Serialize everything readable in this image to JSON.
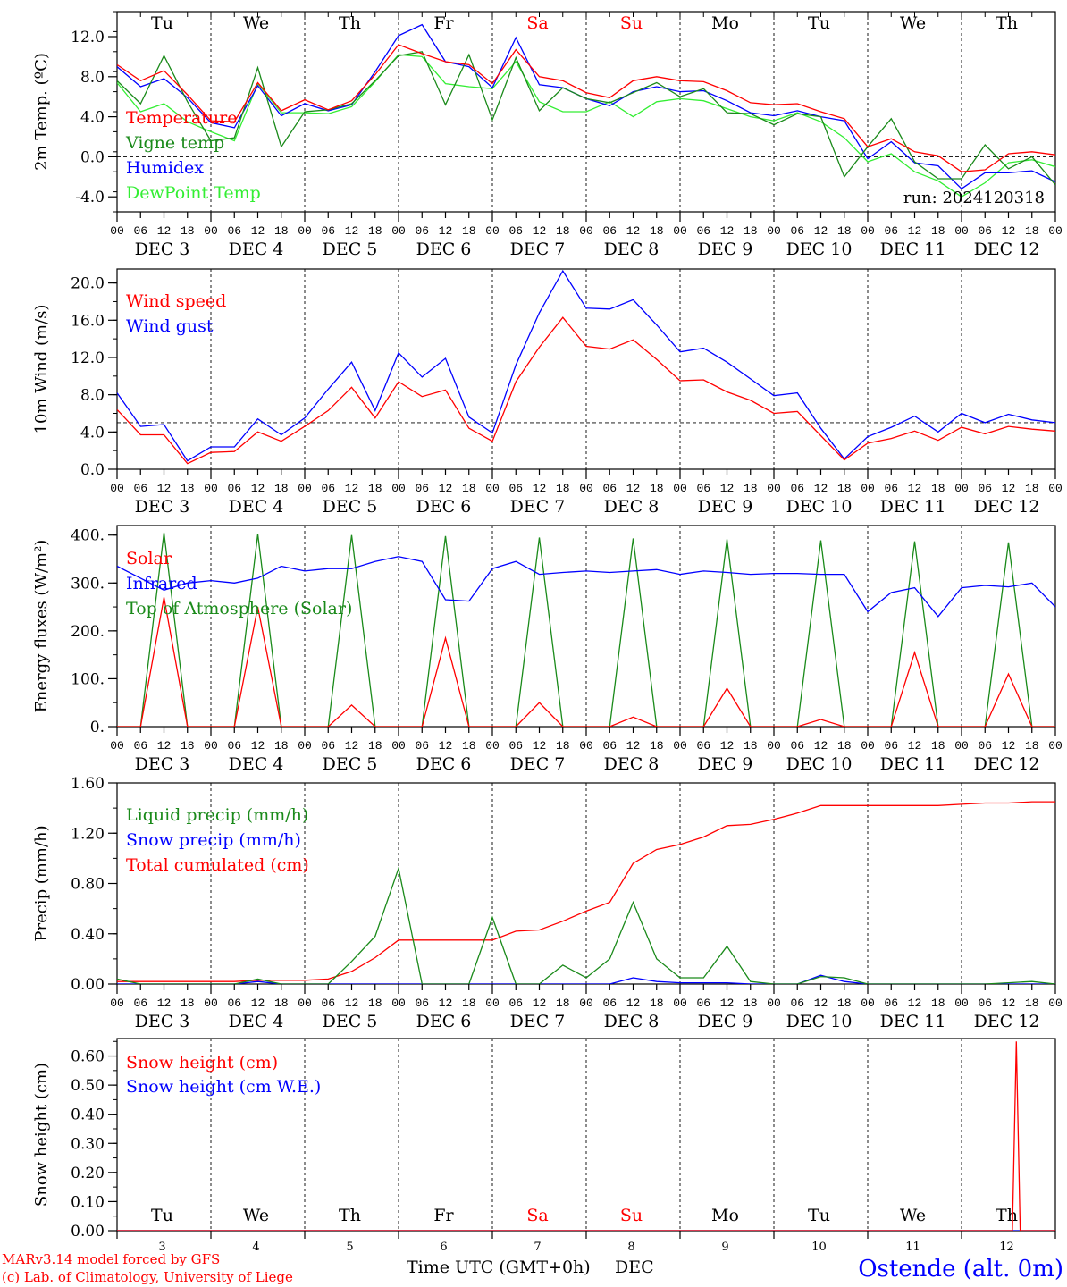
{
  "colors": {
    "red": "#ff0000",
    "green": "#1a8a1a",
    "blue": "#0000ff",
    "lightgreen": "#33ee33",
    "weekend": "#ff0000",
    "axis": "#000000"
  },
  "days": {
    "weekdays": [
      "Tu",
      "We",
      "Th",
      "Fr",
      "Sa",
      "Su",
      "Mo",
      "Tu",
      "We",
      "Th"
    ],
    "weekend_flags": [
      false,
      false,
      false,
      false,
      true,
      true,
      false,
      false,
      false,
      false
    ],
    "day_numbers": [
      "3",
      "4",
      "5",
      "6",
      "7",
      "8",
      "9",
      "10",
      "11",
      "12"
    ],
    "date_labels": [
      "DEC  3",
      "DEC  4",
      "DEC  5",
      "DEC  6",
      "DEC  7",
      "DEC  8",
      "DEC  9",
      "DEC 10",
      "DEC 11",
      "DEC 12"
    ],
    "hour_ticks": [
      "00",
      "06",
      "12",
      "18"
    ],
    "final_hour": "00"
  },
  "footer": {
    "credit_line1": "MARv3.14 model forced by GFS",
    "credit_line2": "(c) Lab. of Climatology, University of Liege",
    "xaxis_title": "Time UTC (GMT+0h)",
    "month": "DEC",
    "station": "Ostende (alt. 0m)"
  },
  "chart_data": [
    {
      "type": "line",
      "ylabel": "2m Temp. (ºC)",
      "ylim": [
        -5.5,
        14.5
      ],
      "yticks": [
        "12.0",
        "8.0",
        "4.0",
        "0.0",
        "-4.0"
      ],
      "ytick_values": [
        12,
        8,
        4,
        0,
        -4
      ],
      "dashed_reference": 0,
      "annotation": "run: 2024120318",
      "x_hours": [
        0,
        6,
        12,
        18,
        24,
        30,
        36,
        42,
        48,
        54,
        60,
        66,
        72,
        78,
        84,
        90,
        96,
        102,
        108,
        114,
        120,
        126,
        132,
        138,
        144,
        150,
        156,
        162,
        168,
        174,
        180,
        186,
        192,
        198,
        204,
        210,
        216,
        222,
        228,
        234,
        240
      ],
      "series": [
        {
          "name": "Temperature",
          "color": "red",
          "values": [
            9.2,
            7.6,
            8.6,
            6.2,
            3.6,
            3.5,
            7.4,
            4.6,
            5.7,
            4.7,
            5.6,
            8.2,
            11.2,
            10.3,
            9.5,
            9.2,
            7.3,
            10.7,
            8.0,
            7.6,
            6.4,
            5.9,
            7.6,
            8.0,
            7.6,
            7.5,
            6.6,
            5.4,
            5.2,
            5.3,
            4.5,
            3.8,
            1.0,
            1.8,
            0.5,
            0.1,
            -1.5,
            -1.3,
            0.3,
            0.5,
            0.2
          ]
        },
        {
          "name": "Vigne temp",
          "color": "green",
          "values": [
            7.6,
            5.3,
            10.1,
            5.5,
            1.6,
            1.9,
            8.9,
            1.0,
            4.5,
            4.7,
            5.3,
            7.6,
            10.1,
            10.5,
            5.2,
            10.2,
            3.7,
            9.9,
            4.6,
            6.9,
            5.8,
            5.4,
            6.4,
            7.4,
            6.0,
            6.8,
            4.4,
            4.3,
            3.2,
            4.3,
            4.0,
            -2.0,
            1.0,
            3.8,
            -0.5,
            -2.2,
            -2.2,
            1.2,
            -1.2,
            0.0,
            -2.8
          ]
        },
        {
          "name": "Humidex",
          "color": "blue",
          "values": [
            9.0,
            7.0,
            7.8,
            5.9,
            3.4,
            2.9,
            7.1,
            4.1,
            5.3,
            4.6,
            5.2,
            8.5,
            12.1,
            13.2,
            9.5,
            9.0,
            6.9,
            11.9,
            7.2,
            6.9,
            5.8,
            5.1,
            6.5,
            7.0,
            6.5,
            6.6,
            5.6,
            4.4,
            4.1,
            4.6,
            4.0,
            3.6,
            -0.2,
            1.5,
            -0.6,
            -0.9,
            -3.2,
            -1.6,
            -1.6,
            -1.4,
            -2.5
          ]
        },
        {
          "name": "DewPoint Temp",
          "color": "lightgreen",
          "values": [
            7.4,
            4.5,
            5.3,
            3.5,
            2.5,
            1.6,
            7.3,
            4.4,
            4.4,
            4.3,
            5.0,
            7.5,
            10.2,
            10.0,
            7.3,
            7.0,
            6.8,
            9.5,
            5.5,
            4.5,
            4.5,
            5.5,
            4.0,
            5.5,
            5.8,
            5.6,
            4.8,
            4.0,
            3.6,
            4.4,
            3.5,
            1.9,
            -0.5,
            0.3,
            -1.5,
            -2.4,
            -4.0,
            -2.6,
            -0.6,
            -0.3,
            -1.0
          ]
        }
      ]
    },
    {
      "type": "line",
      "ylabel": "10m Wind (m/s)",
      "ylim": [
        0,
        21.5
      ],
      "yticks": [
        "20.0",
        "16.0",
        "12.0",
        "8.0",
        "4.0",
        "0.0"
      ],
      "ytick_values": [
        20,
        16,
        12,
        8,
        4,
        0
      ],
      "dashed_reference": 5,
      "x_hours": [
        0,
        6,
        12,
        18,
        24,
        30,
        36,
        42,
        48,
        54,
        60,
        66,
        72,
        78,
        84,
        90,
        96,
        102,
        108,
        114,
        120,
        126,
        132,
        138,
        144,
        150,
        156,
        162,
        168,
        174,
        180,
        186,
        192,
        198,
        204,
        210,
        216,
        222,
        228,
        234,
        240
      ],
      "series": [
        {
          "name": "Wind speed",
          "color": "red",
          "values": [
            6.4,
            3.7,
            3.7,
            0.6,
            1.8,
            1.9,
            4.0,
            3.0,
            4.6,
            6.3,
            8.8,
            5.5,
            9.4,
            7.8,
            8.5,
            4.4,
            3.0,
            9.4,
            13.1,
            16.3,
            13.2,
            12.9,
            13.9,
            11.8,
            9.5,
            9.6,
            8.3,
            7.4,
            6.0,
            6.2,
            3.6,
            1.0,
            2.8,
            3.3,
            4.1,
            3.1,
            4.5,
            3.8,
            4.6,
            4.3,
            4.1
          ]
        },
        {
          "name": "Wind gust",
          "color": "blue",
          "values": [
            8.2,
            4.6,
            4.8,
            0.9,
            2.4,
            2.4,
            5.4,
            3.7,
            5.5,
            8.6,
            11.5,
            6.3,
            12.5,
            9.9,
            11.9,
            5.6,
            3.9,
            11.2,
            16.8,
            21.3,
            17.3,
            17.2,
            18.2,
            15.5,
            12.6,
            13.0,
            11.5,
            9.7,
            7.9,
            8.2,
            4.4,
            1.1,
            3.5,
            4.5,
            5.7,
            4.0,
            6.0,
            5.0,
            5.9,
            5.3,
            5.0
          ]
        }
      ]
    },
    {
      "type": "line",
      "ylabel": "Energy fluxes (W/m²)",
      "ylim": [
        0,
        420
      ],
      "yticks": [
        "400.",
        "300.",
        "200.",
        "100.",
        "0."
      ],
      "ytick_values": [
        400,
        300,
        200,
        100,
        0
      ],
      "x_hours": [
        0,
        6,
        12,
        18,
        24,
        30,
        36,
        42,
        48,
        54,
        60,
        66,
        72,
        78,
        84,
        90,
        96,
        102,
        108,
        114,
        120,
        126,
        132,
        138,
        144,
        150,
        156,
        162,
        168,
        174,
        180,
        186,
        192,
        198,
        204,
        210,
        216,
        222,
        228,
        234,
        240
      ],
      "series": [
        {
          "name": "Solar",
          "color": "red",
          "values": [
            0,
            0,
            270,
            0,
            0,
            0,
            250,
            0,
            0,
            0,
            45,
            0,
            0,
            0,
            185,
            0,
            0,
            0,
            50,
            0,
            0,
            0,
            20,
            0,
            0,
            0,
            80,
            0,
            0,
            0,
            15,
            0,
            0,
            0,
            155,
            0,
            0,
            0,
            110,
            0,
            0
          ]
        },
        {
          "name": "Infrared",
          "color": "blue",
          "values": [
            335,
            310,
            285,
            300,
            305,
            300,
            310,
            335,
            325,
            330,
            330,
            345,
            355,
            345,
            265,
            262,
            330,
            345,
            318,
            322,
            325,
            322,
            325,
            328,
            318,
            325,
            322,
            318,
            320,
            320,
            318,
            318,
            240,
            280,
            290,
            230,
            290,
            295,
            292,
            300,
            250
          ]
        },
        {
          "name": "Top of Atmosphere (Solar)",
          "color": "green",
          "values": [
            0,
            0,
            405,
            0,
            0,
            0,
            402,
            0,
            0,
            0,
            400,
            0,
            0,
            0,
            398,
            0,
            0,
            0,
            395,
            0,
            0,
            0,
            393,
            0,
            0,
            0,
            391,
            0,
            0,
            0,
            389,
            0,
            0,
            0,
            387,
            0,
            0,
            0,
            385,
            0,
            0
          ]
        }
      ]
    },
    {
      "type": "line",
      "ylabel": "Precip (mm/h)",
      "ylim": [
        0,
        1.6
      ],
      "yticks": [
        "1.60",
        "1.20",
        "0.80",
        "0.40",
        "0.00"
      ],
      "ytick_values": [
        1.6,
        1.2,
        0.8,
        0.4,
        0
      ],
      "x_hours": [
        0,
        6,
        12,
        18,
        24,
        30,
        36,
        42,
        48,
        54,
        60,
        66,
        72,
        78,
        84,
        90,
        96,
        102,
        108,
        114,
        120,
        126,
        132,
        138,
        144,
        150,
        156,
        162,
        168,
        174,
        180,
        186,
        192,
        198,
        204,
        210,
        216,
        222,
        228,
        234,
        240
      ],
      "series": [
        {
          "name": "Liquid precip (mm/h)",
          "color": "green",
          "values": [
            0.04,
            0,
            0,
            0,
            0,
            0,
            0.04,
            0,
            0,
            0,
            0.18,
            0.38,
            0.92,
            0,
            0,
            0,
            0.53,
            0,
            0,
            0.15,
            0.05,
            0.2,
            0.65,
            0.2,
            0.05,
            0.05,
            0.3,
            0.02,
            0.0,
            0.0,
            0.06,
            0.05,
            0,
            0,
            0,
            0,
            0,
            0,
            0.01,
            0.02,
            0.0
          ]
        },
        {
          "name": "Snow precip (mm/h)",
          "color": "blue",
          "values": [
            0,
            0,
            0,
            0,
            0,
            0,
            0.02,
            0,
            0,
            0,
            0,
            0,
            0,
            0,
            0,
            0,
            0,
            0,
            0,
            0,
            0,
            0,
            0.05,
            0.02,
            0.01,
            0.01,
            0.01,
            0.0,
            0.0,
            0.0,
            0.07,
            0.02,
            0,
            0,
            0,
            0,
            0,
            0,
            0,
            0,
            0
          ]
        },
        {
          "name": "Total cumulated (cm)",
          "color": "red",
          "values": [
            0.02,
            0.02,
            0.02,
            0.02,
            0.02,
            0.02,
            0.03,
            0.03,
            0.03,
            0.04,
            0.1,
            0.21,
            0.35,
            0.35,
            0.35,
            0.35,
            0.35,
            0.42,
            0.43,
            0.5,
            0.58,
            0.65,
            0.96,
            1.07,
            1.11,
            1.17,
            1.26,
            1.27,
            1.31,
            1.36,
            1.42,
            1.42,
            1.42,
            1.42,
            1.42,
            1.42,
            1.43,
            1.44,
            1.44,
            1.45,
            1.45
          ]
        }
      ]
    },
    {
      "type": "line",
      "ylabel": "Snow height (cm)",
      "ylim": [
        0,
        0.66
      ],
      "yticks": [
        "0.60",
        "0.50",
        "0.40",
        "0.30",
        "0.20",
        "0.10",
        "0.00"
      ],
      "ytick_values": [
        0.6,
        0.5,
        0.4,
        0.3,
        0.2,
        0.1,
        0
      ],
      "x_hours": [
        0,
        24,
        48,
        72,
        96,
        120,
        144,
        168,
        192,
        216,
        228,
        229,
        230,
        231,
        240
      ],
      "series": [
        {
          "name": "Snow height (cm)",
          "color": "red",
          "values": [
            0,
            0,
            0,
            0,
            0,
            0,
            0,
            0,
            0,
            0,
            0,
            0,
            0.65,
            0,
            0
          ]
        },
        {
          "name": "Snow height (cm W.E.)",
          "color": "blue",
          "values": [
            0,
            0,
            0,
            0,
            0,
            0,
            0,
            0,
            0,
            0,
            0,
            0,
            0,
            0,
            0
          ]
        }
      ]
    }
  ]
}
